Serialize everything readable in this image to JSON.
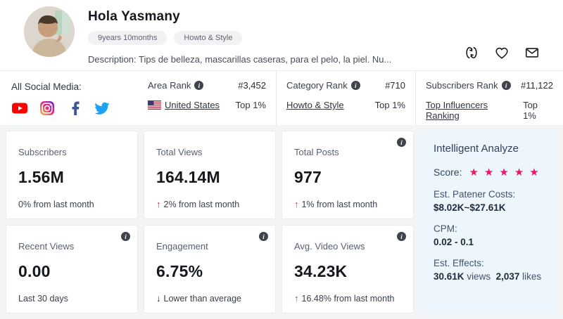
{
  "profile": {
    "name": "Hola Yasmany",
    "badges": [
      "9years 10months",
      "Howto & Style"
    ],
    "description": "Description: Tips de belleza, mascarillas caseras, para el pelo, la piel. Nu..."
  },
  "social": {
    "label": "All Social Media:",
    "platforms": [
      "youtube",
      "instagram",
      "facebook",
      "twitter"
    ]
  },
  "ranks": [
    {
      "label": "Area Rank",
      "value": "#3,452",
      "link": "United States",
      "top": "Top 1%"
    },
    {
      "label": "Category Rank",
      "value": "#710",
      "link": "Howto & Style",
      "top": "Top 1%"
    },
    {
      "label": "Subscribers Rank",
      "value": "#11,122",
      "link": "Top Influencers Ranking",
      "top": "Top 1%"
    }
  ],
  "stats": [
    {
      "label": "Subscribers",
      "value": "1.56M",
      "delta": "0% from last month",
      "trend_icon": "",
      "trend_class": "arrow none"
    },
    {
      "label": "Total Views",
      "value": "164.14M",
      "delta": "2% from last month",
      "trend_icon": "↑",
      "trend_class": "arrow up"
    },
    {
      "label": "Total Posts",
      "value": "977",
      "delta": "1% from last month",
      "trend_icon": "↑",
      "trend_class": "arrow up"
    },
    {
      "label": "Recent Views",
      "value": "0.00",
      "delta": "Last 30 days",
      "trend_icon": "",
      "trend_class": "arrow none"
    },
    {
      "label": "Engagement",
      "value": "6.75%",
      "delta": "Lower than average",
      "trend_icon": "↓",
      "trend_class": "arrow down"
    },
    {
      "label": "Avg. Video Views",
      "value": "34.23K",
      "delta": "16.48% from last month",
      "trend_icon": "↑",
      "trend_class": "arrow up"
    }
  ],
  "analyze": {
    "title": "Intelligent Analyze",
    "score_label": "Score:",
    "score": 5,
    "cost_label": "Est. Patener Costs:",
    "cost_value": "$8.02K~$27.61K",
    "cpm_label": "CPM:",
    "cpm_value": "0.02 - 0.1",
    "effects_label": "Est. Effects:",
    "effects_views": "30.61K",
    "effects_views_unit": "views",
    "effects_likes": "2,037",
    "effects_likes_unit": "likes"
  },
  "colors": {
    "accent": "#f2136f",
    "panel_bg": "#edf5fd"
  }
}
